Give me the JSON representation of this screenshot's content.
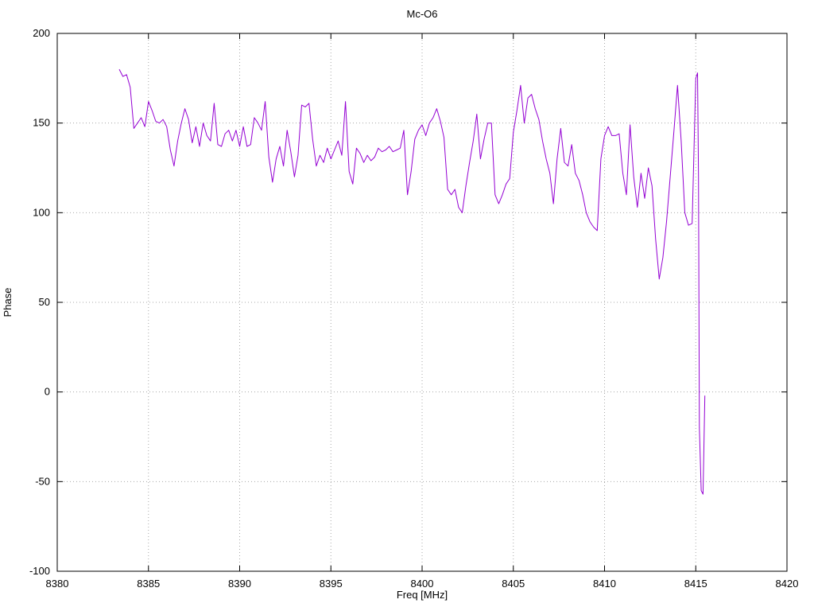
{
  "chart_data": {
    "type": "line",
    "title": "Mc-O6",
    "xlabel": "Freq [MHz]",
    "ylabel": "Phase",
    "xlim": [
      8380,
      8420
    ],
    "ylim": [
      -100,
      200
    ],
    "x_ticks": [
      8380,
      8385,
      8390,
      8395,
      8400,
      8405,
      8410,
      8415,
      8420
    ],
    "y_ticks": [
      -100,
      -50,
      0,
      50,
      100,
      150,
      200
    ],
    "grid": true,
    "legend": "none",
    "line_color": "#9400d3",
    "grid_color": "#a8a8a8",
    "border_color": "#000000",
    "series": [
      {
        "name": "Phase",
        "x": [
          8383.4,
          8383.6,
          8383.8,
          8384.0,
          8384.2,
          8384.4,
          8384.6,
          8384.8,
          8385.0,
          8385.2,
          8385.4,
          8385.6,
          8385.8,
          8386.0,
          8386.2,
          8386.4,
          8386.6,
          8386.8,
          8387.0,
          8387.2,
          8387.4,
          8387.6,
          8387.8,
          8388.0,
          8388.2,
          8388.4,
          8388.6,
          8388.8,
          8389.0,
          8389.2,
          8389.4,
          8389.6,
          8389.8,
          8390.0,
          8390.2,
          8390.4,
          8390.6,
          8390.8,
          8391.0,
          8391.2,
          8391.4,
          8391.6,
          8391.8,
          8392.0,
          8392.2,
          8392.4,
          8392.6,
          8392.8,
          8393.0,
          8393.2,
          8393.4,
          8393.6,
          8393.8,
          8394.0,
          8394.2,
          8394.4,
          8394.6,
          8394.8,
          8395.0,
          8395.2,
          8395.4,
          8395.6,
          8395.8,
          8396.0,
          8396.2,
          8396.4,
          8396.6,
          8396.8,
          8397.0,
          8397.2,
          8397.4,
          8397.6,
          8397.8,
          8398.0,
          8398.2,
          8398.4,
          8398.6,
          8398.8,
          8399.0,
          8399.2,
          8399.4,
          8399.6,
          8399.8,
          8400.0,
          8400.2,
          8400.4,
          8400.6,
          8400.8,
          8401.0,
          8401.2,
          8401.4,
          8401.6,
          8401.8,
          8402.0,
          8402.2,
          8402.4,
          8402.6,
          8402.8,
          8403.0,
          8403.2,
          8403.4,
          8403.6,
          8403.8,
          8404.0,
          8404.2,
          8404.4,
          8404.6,
          8404.8,
          8405.0,
          8405.2,
          8405.4,
          8405.6,
          8405.8,
          8406.0,
          8406.2,
          8406.4,
          8406.6,
          8406.8,
          8407.0,
          8407.2,
          8407.4,
          8407.6,
          8407.8,
          8408.0,
          8408.2,
          8408.4,
          8408.6,
          8408.8,
          8409.0,
          8409.2,
          8409.4,
          8409.6,
          8409.8,
          8410.0,
          8410.2,
          8410.4,
          8410.6,
          8410.8,
          8411.0,
          8411.2,
          8411.4,
          8411.6,
          8411.8,
          8412.0,
          8412.2,
          8412.4,
          8412.6,
          8412.8,
          8413.0,
          8413.2,
          8413.4,
          8413.6,
          8413.8,
          8414.0,
          8414.2,
          8414.4,
          8414.6,
          8414.8,
          8415.0,
          8415.1,
          8415.15,
          8415.2,
          8415.3,
          8415.4,
          8415.5
        ],
        "y": [
          180,
          176,
          177,
          170,
          147,
          150,
          153,
          148,
          162,
          157,
          151,
          150,
          152,
          148,
          135,
          126,
          140,
          150,
          158,
          152,
          139,
          148,
          137,
          150,
          143,
          140,
          161,
          138,
          137,
          144,
          146,
          140,
          146,
          137,
          148,
          137,
          138,
          153,
          150,
          146,
          162,
          131,
          117,
          130,
          137,
          126,
          146,
          134,
          120,
          132,
          160,
          159,
          161,
          141,
          126,
          132,
          128,
          136,
          130,
          135,
          140,
          132,
          162,
          123,
          116,
          136,
          133,
          128,
          132,
          129,
          131,
          136,
          134,
          135,
          137,
          134,
          135,
          136,
          146,
          110,
          123,
          141,
          146,
          149,
          143,
          150,
          153,
          158,
          151,
          142,
          113,
          110,
          113,
          103,
          100,
          115,
          128,
          140,
          155,
          130,
          141,
          150,
          150,
          110,
          105,
          110,
          116,
          119,
          145,
          157,
          171,
          150,
          164,
          166,
          158,
          152,
          140,
          130,
          122,
          105,
          130,
          147,
          128,
          126,
          138,
          122,
          118,
          110,
          100,
          95,
          92,
          90,
          130,
          143,
          148,
          143,
          143,
          144,
          122,
          110,
          149,
          120,
          103,
          122,
          108,
          125,
          115,
          85,
          63,
          75,
          95,
          120,
          145,
          171,
          140,
          100,
          93,
          94,
          175,
          178,
          120,
          -20,
          -55,
          -57,
          -2
        ]
      }
    ]
  }
}
